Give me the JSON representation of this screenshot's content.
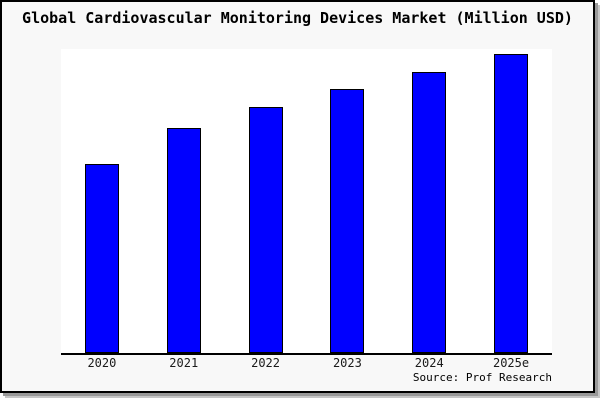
{
  "title": "Global Cardiovascular Monitoring Devices Market (Million USD)",
  "source": "Source: Prof Research",
  "colors": {
    "bar_fill": "#0000ff",
    "bar_border": "#000000",
    "box_background": "#f8f8f8",
    "plot_background": "#ffffff",
    "axis": "#000000",
    "box_border": "#000000",
    "shadow_inner": "#999999",
    "shadow_outer": "#c6c6c6"
  },
  "chart_data": {
    "type": "bar",
    "title": "Global Cardiovascular Monitoring Devices Market (Million USD)",
    "categories": [
      "2020",
      "2021",
      "2022",
      "2023",
      "2024",
      "2025e"
    ],
    "values": [
      63,
      75,
      82,
      88,
      94,
      100
    ],
    "xlabel": "",
    "ylabel": "",
    "ylim": [
      0,
      101.5
    ],
    "grid": false,
    "legend": false,
    "y_axis_labels_shown": false,
    "note": "y-axis is unlabeled; values are relative bar heights estimated from pixels (2025e = 100)"
  }
}
